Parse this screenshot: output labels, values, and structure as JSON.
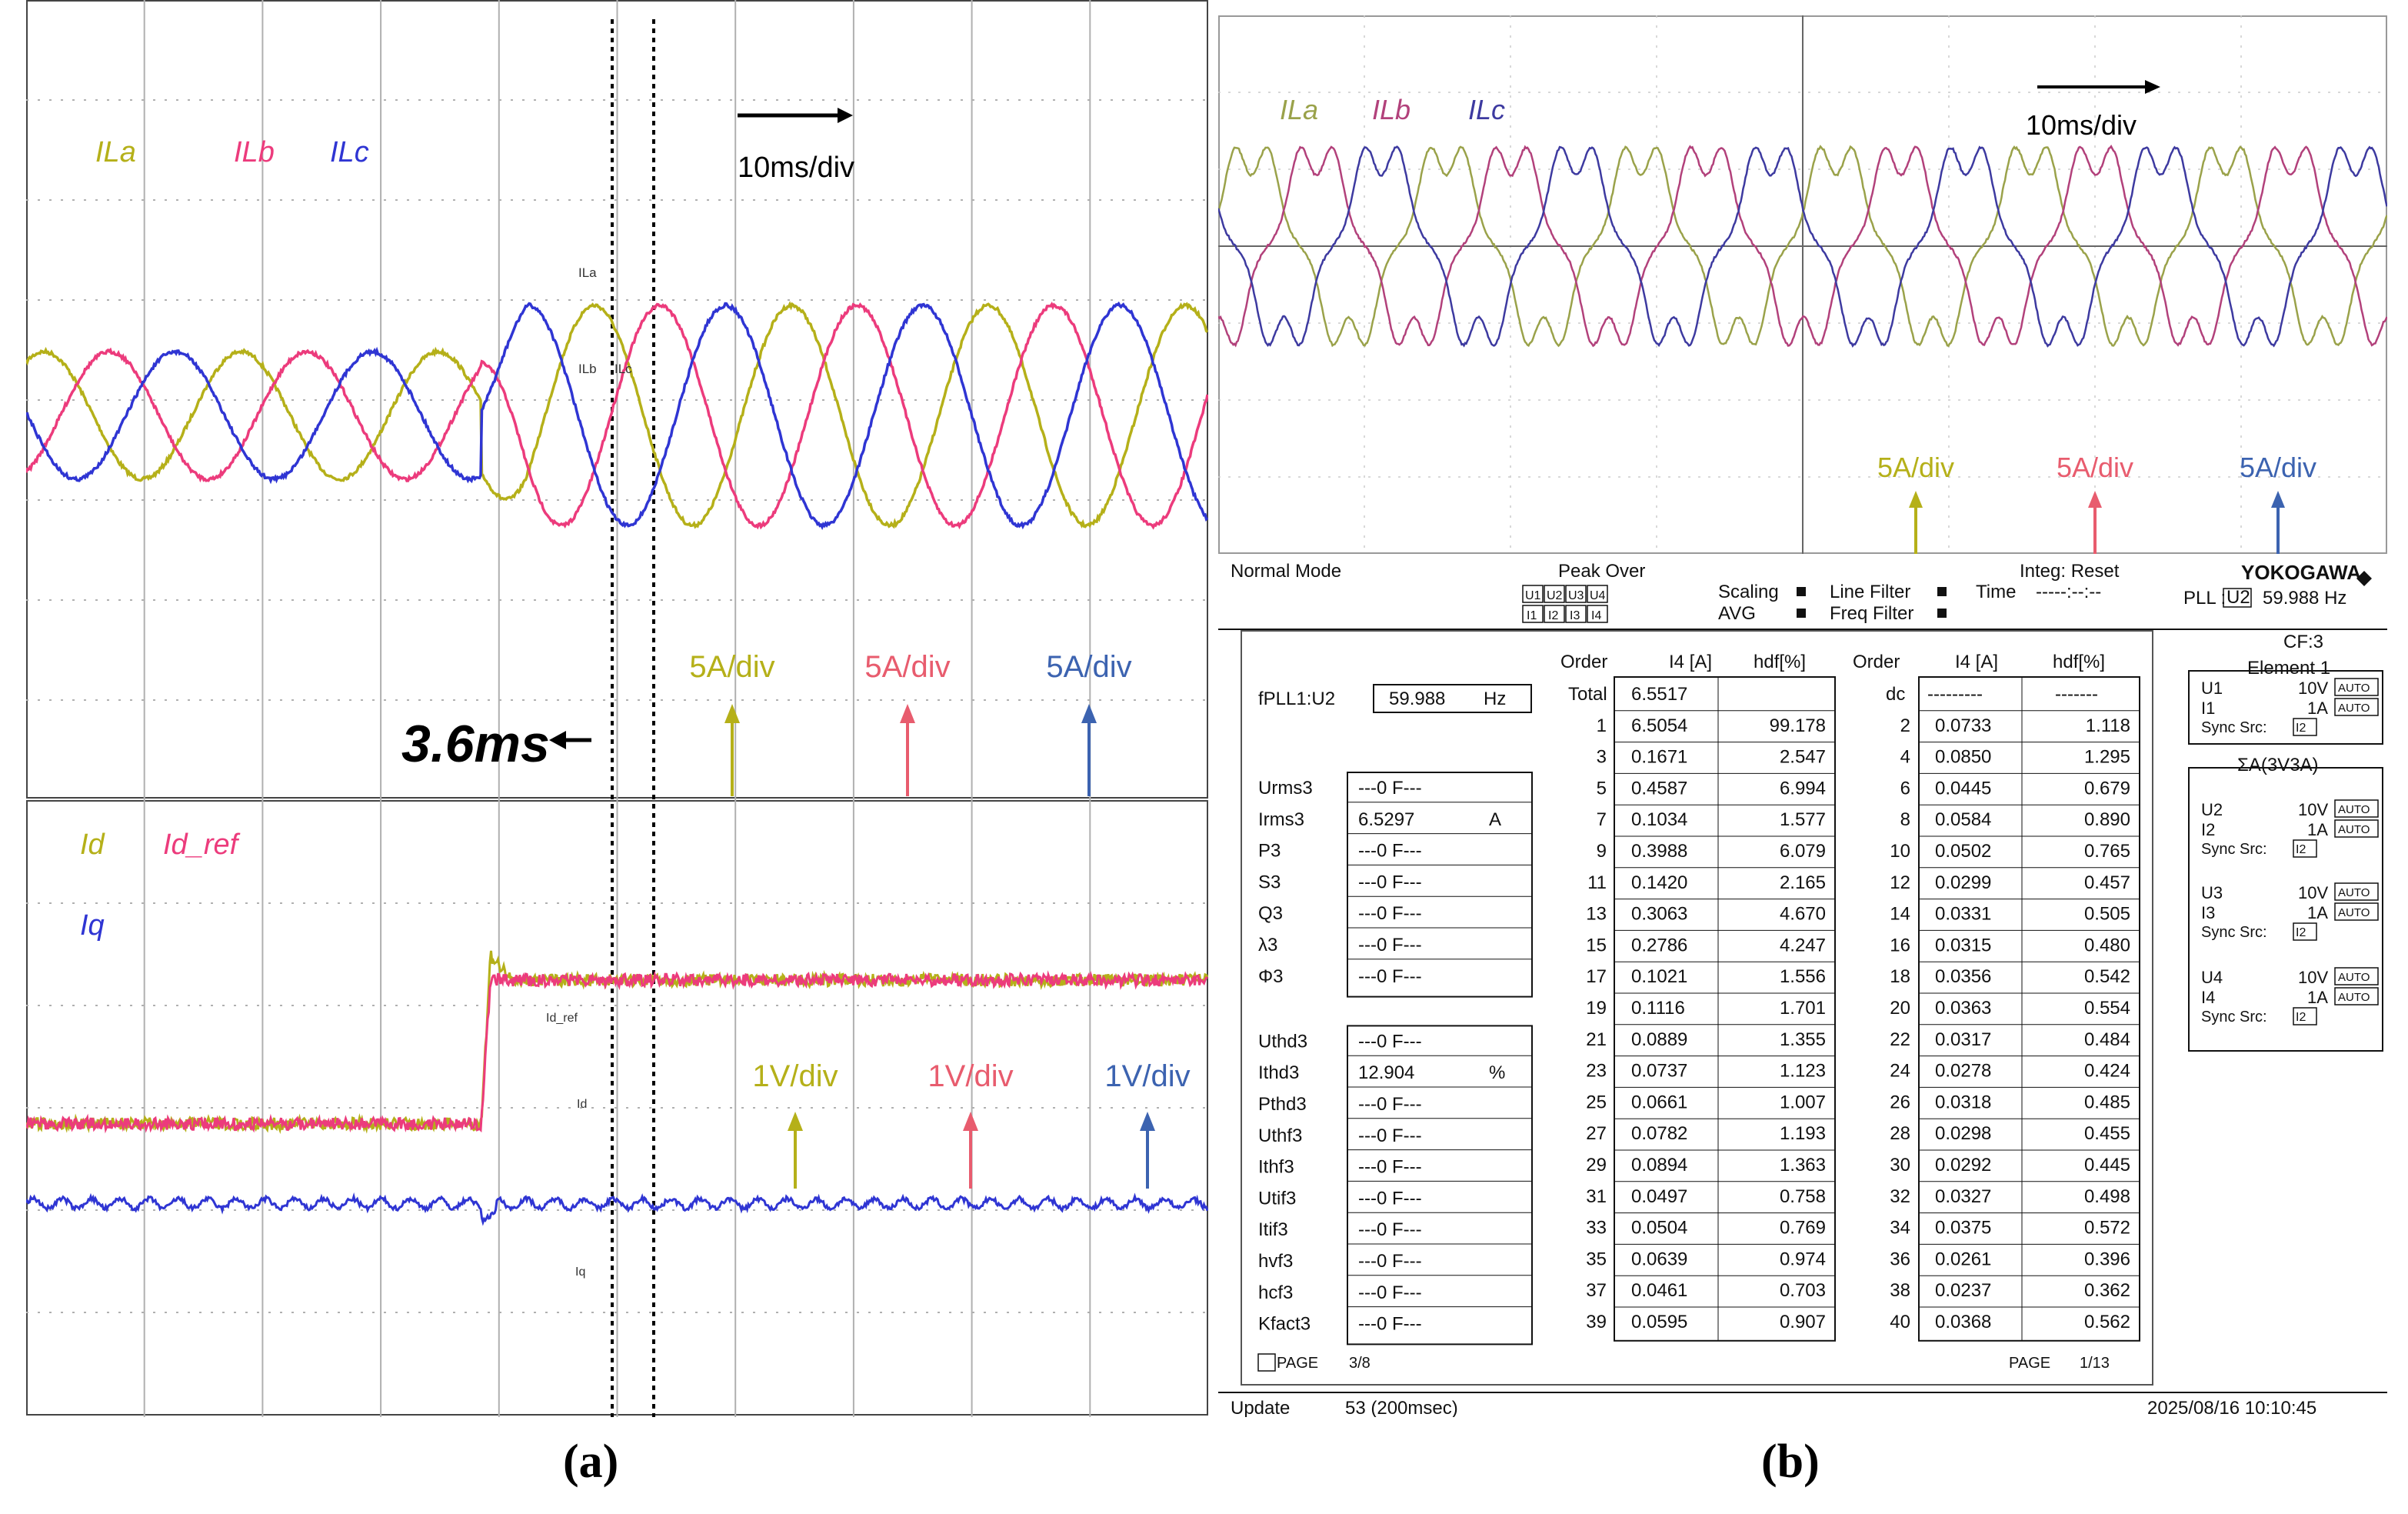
{
  "captions": {
    "a": "(a)",
    "b": "(b)"
  },
  "colors": {
    "ila": "#b5b019",
    "ilb": "#ec3b7c",
    "ilc": "#2f35d3",
    "grid": "#b0b0b0",
    "frame": "#444444",
    "label_pink": "#e85c6e",
    "label_blue": "#3c63b0"
  },
  "panel_a": {
    "top": {
      "legend": [
        "ILa",
        "ILb",
        "ILc"
      ],
      "time_scale": "10ms/div",
      "ch_tags": [
        "ILa",
        "ILb",
        "ILc"
      ],
      "scales": [
        "5A/div",
        "5A/div",
        "5A/div"
      ],
      "annotation": "3.6ms"
    },
    "bottom": {
      "legend": [
        "Id",
        "Id_ref",
        "Iq"
      ],
      "ch_tags": [
        "Id_ref",
        "Id",
        "Iq"
      ],
      "scales": [
        "1V/div",
        "1V/div",
        "1V/div"
      ]
    }
  },
  "chart_data": [
    {
      "type": "line",
      "title": "",
      "xlabel": "",
      "ylabel": "",
      "x_unit": "ms",
      "x_per_div": 10,
      "y_per_div": 5,
      "y_unit": "A",
      "xlim": [
        0,
        100
      ],
      "step_time": 38.5,
      "response_time": 3.6,
      "grid": true,
      "series": [
        {
          "name": "ILa",
          "frequency_hz": 60,
          "amplitude_before": 5.5,
          "amplitude_after": 9.5,
          "phase_deg": 0
        },
        {
          "name": "ILb",
          "frequency_hz": 60,
          "amplitude_before": 5.5,
          "amplitude_after": 9.5,
          "phase_deg": -120
        },
        {
          "name": "ILc",
          "frequency_hz": 60,
          "amplitude_before": 5.5,
          "amplitude_after": 9.5,
          "phase_deg": 120
        }
      ]
    },
    {
      "type": "line",
      "title": "",
      "xlabel": "",
      "ylabel": "",
      "x_unit": "ms",
      "x_per_div": 10,
      "y_per_div": 1,
      "y_unit": "V",
      "xlim": [
        0,
        100
      ],
      "step_time": 38.5,
      "grid": true,
      "series": [
        {
          "name": "Id",
          "level_before": -0.2,
          "level_after": 1.6,
          "overshoot": 0.3
        },
        {
          "name": "Id_ref",
          "level_before": -0.2,
          "level_after": 1.6
        },
        {
          "name": "Iq",
          "level": -1.2
        }
      ]
    },
    {
      "type": "line",
      "title": "",
      "xlabel": "",
      "ylabel": "",
      "x_unit": "ms",
      "x_per_div": 10,
      "y_per_div": 5,
      "y_unit": "A",
      "xlim": [
        0,
        100
      ],
      "grid": true,
      "series": [
        {
          "name": "ILa",
          "frequency_hz": 60,
          "amplitude": 6.5,
          "phase_deg": 0
        },
        {
          "name": "ILb",
          "frequency_hz": 60,
          "amplitude": 6.5,
          "phase_deg": -120
        },
        {
          "name": "ILc",
          "frequency_hz": 60,
          "amplitude": 6.5,
          "phase_deg": 120
        }
      ]
    },
    {
      "type": "table",
      "columns": [
        "Order",
        "I4 [A]",
        "hdf[%]",
        "Order",
        "I4 [A]",
        "hdf[%]"
      ],
      "total": {
        "order": "Total",
        "i4": "6.5517"
      },
      "dc": {
        "order": "dc",
        "i4": "---------",
        "hdf": "-------"
      },
      "rows_odd": [
        [
          "1",
          "6.5054",
          "99.178"
        ],
        [
          "3",
          "0.1671",
          "2.547"
        ],
        [
          "5",
          "0.4587",
          "6.994"
        ],
        [
          "7",
          "0.1034",
          "1.577"
        ],
        [
          "9",
          "0.3988",
          "6.079"
        ],
        [
          "11",
          "0.1420",
          "2.165"
        ],
        [
          "13",
          "0.3063",
          "4.670"
        ],
        [
          "15",
          "0.2786",
          "4.247"
        ],
        [
          "17",
          "0.1021",
          "1.556"
        ],
        [
          "19",
          "0.1116",
          "1.701"
        ],
        [
          "21",
          "0.0889",
          "1.355"
        ],
        [
          "23",
          "0.0737",
          "1.123"
        ],
        [
          "25",
          "0.0661",
          "1.007"
        ],
        [
          "27",
          "0.0782",
          "1.193"
        ],
        [
          "29",
          "0.0894",
          "1.363"
        ],
        [
          "31",
          "0.0497",
          "0.758"
        ],
        [
          "33",
          "0.0504",
          "0.769"
        ],
        [
          "35",
          "0.0639",
          "0.974"
        ],
        [
          "37",
          "0.0461",
          "0.703"
        ],
        [
          "39",
          "0.0595",
          "0.907"
        ]
      ],
      "rows_even": [
        [
          "2",
          "0.0733",
          "1.118"
        ],
        [
          "4",
          "0.0850",
          "1.295"
        ],
        [
          "6",
          "0.0445",
          "0.679"
        ],
        [
          "8",
          "0.0584",
          "0.890"
        ],
        [
          "10",
          "0.0502",
          "0.765"
        ],
        [
          "12",
          "0.0299",
          "0.457"
        ],
        [
          "14",
          "0.0331",
          "0.505"
        ],
        [
          "16",
          "0.0315",
          "0.480"
        ],
        [
          "18",
          "0.0356",
          "0.542"
        ],
        [
          "20",
          "0.0363",
          "0.554"
        ],
        [
          "22",
          "0.0317",
          "0.484"
        ],
        [
          "24",
          "0.0278",
          "0.424"
        ],
        [
          "26",
          "0.0318",
          "0.485"
        ],
        [
          "28",
          "0.0298",
          "0.455"
        ],
        [
          "30",
          "0.0292",
          "0.445"
        ],
        [
          "32",
          "0.0327",
          "0.498"
        ],
        [
          "34",
          "0.0375",
          "0.572"
        ],
        [
          "36",
          "0.0261",
          "0.396"
        ],
        [
          "38",
          "0.0237",
          "0.362"
        ],
        [
          "40",
          "0.0368",
          "0.562"
        ]
      ]
    }
  ],
  "panel_b": {
    "legend": [
      "ILa",
      "ILb",
      "ILc"
    ],
    "time_scale": "10ms/div",
    "scales": [
      "5A/div",
      "5A/div",
      "5A/div"
    ],
    "status": {
      "mode": "Normal Mode",
      "peak_over": "Peak Over",
      "peak_u": [
        "U1",
        "U2",
        "U3",
        "U4"
      ],
      "peak_i": [
        "I1",
        "I2",
        "I3",
        "I4"
      ],
      "scaling": "Scaling",
      "avg": "AVG",
      "line_filter": "Line Filter",
      "freq_filter": "Freq Filter",
      "time": "Time",
      "time_value": "-----:--:--",
      "integ": "Integ: Reset",
      "brand": "YOKOGAWA",
      "pll_label": "PLL :",
      "pll_src": "U2",
      "pll_value": "59.988  Hz"
    },
    "meter": {
      "fpll_label": "fPLL1:U2",
      "fpll_value": "59.988",
      "fpll_unit": "Hz",
      "params": [
        {
          "name": "Urms3",
          "value": "---0 F---",
          "unit": ""
        },
        {
          "name": "Irms3",
          "value": "6.5297",
          "unit": "A"
        },
        {
          "name": "P3",
          "value": "---0 F---",
          "unit": ""
        },
        {
          "name": "S3",
          "value": "---0 F---",
          "unit": ""
        },
        {
          "name": "Q3",
          "value": "---0 F---",
          "unit": ""
        },
        {
          "name": "λ3",
          "value": "---0 F---",
          "unit": ""
        },
        {
          "name": "Φ3",
          "value": "---0 F---",
          "unit": ""
        }
      ],
      "params2": [
        {
          "name": "Uthd3",
          "value": "---0 F---",
          "unit": ""
        },
        {
          "name": "Ithd3",
          "value": "12.904",
          "unit": "%"
        },
        {
          "name": "Pthd3",
          "value": "---0 F---",
          "unit": ""
        },
        {
          "name": "Uthf3",
          "value": "---0 F---",
          "unit": ""
        },
        {
          "name": "Ithf3",
          "value": "---0 F---",
          "unit": ""
        },
        {
          "name": "Utif3",
          "value": "---0 F---",
          "unit": ""
        },
        {
          "name": "Itif3",
          "value": "---0 F---",
          "unit": ""
        },
        {
          "name": "hvf3",
          "value": "---0 F---",
          "unit": ""
        },
        {
          "name": "hcf3",
          "value": "---0 F---",
          "unit": ""
        },
        {
          "name": "Kfact3",
          "value": "---0 F---",
          "unit": ""
        }
      ],
      "page_left": "PAGE",
      "page_left_num": "3/8",
      "page_right": "PAGE",
      "page_right_num": "1/13"
    },
    "side": {
      "cf": "CF:3",
      "element1": "Element 1",
      "sigma": "ΣA(3V3A)",
      "groups": [
        {
          "u": "U1",
          "i": "I1",
          "src": "I2"
        },
        {
          "u": "U2",
          "i": "I2",
          "src": "I2"
        },
        {
          "u": "U3",
          "i": "I3",
          "src": "I2"
        },
        {
          "u": "U4",
          "i": "I4",
          "src": "I2"
        }
      ],
      "u_range": "10V",
      "i_range": "1A",
      "auto": "AUTO",
      "sync": "Sync Src:"
    },
    "update": {
      "label": "Update",
      "value": "53 (200msec)",
      "datetime": "2025/08/16 10:10:45"
    }
  }
}
